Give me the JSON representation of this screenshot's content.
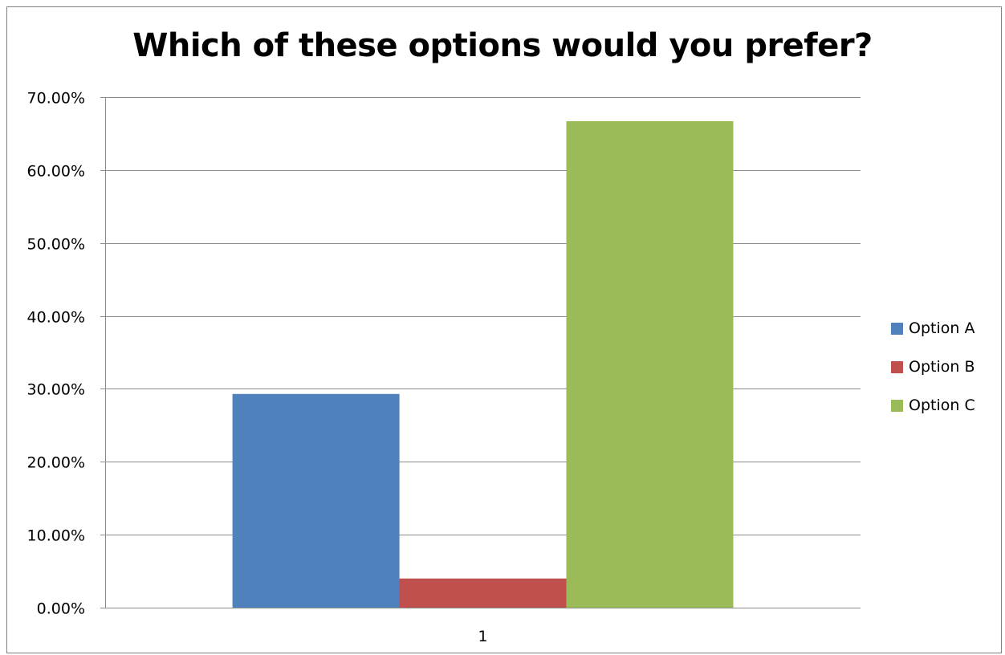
{
  "chart_data": {
    "type": "bar",
    "title": "Which of these options would you prefer?",
    "categories": [
      "1"
    ],
    "series": [
      {
        "name": "Option A",
        "values": [
          0.293
        ],
        "color": "#4F81BD"
      },
      {
        "name": "Option B",
        "values": [
          0.04
        ],
        "color": "#C0504D"
      },
      {
        "name": "Option C",
        "values": [
          0.667
        ],
        "color": "#9BBB59"
      }
    ],
    "ylim": [
      0,
      0.7
    ],
    "yticks": [
      {
        "value": 0.0,
        "label": "0.00%"
      },
      {
        "value": 0.1,
        "label": "10.00%"
      },
      {
        "value": 0.2,
        "label": "20.00%"
      },
      {
        "value": 0.3,
        "label": "30.00%"
      },
      {
        "value": 0.4,
        "label": "40.00%"
      },
      {
        "value": 0.5,
        "label": "50.00%"
      },
      {
        "value": 0.6,
        "label": "60.00%"
      },
      {
        "value": 0.7,
        "label": "70.00%"
      }
    ],
    "xlabel": "",
    "ylabel": "",
    "grid": true,
    "legend_position": "right"
  }
}
